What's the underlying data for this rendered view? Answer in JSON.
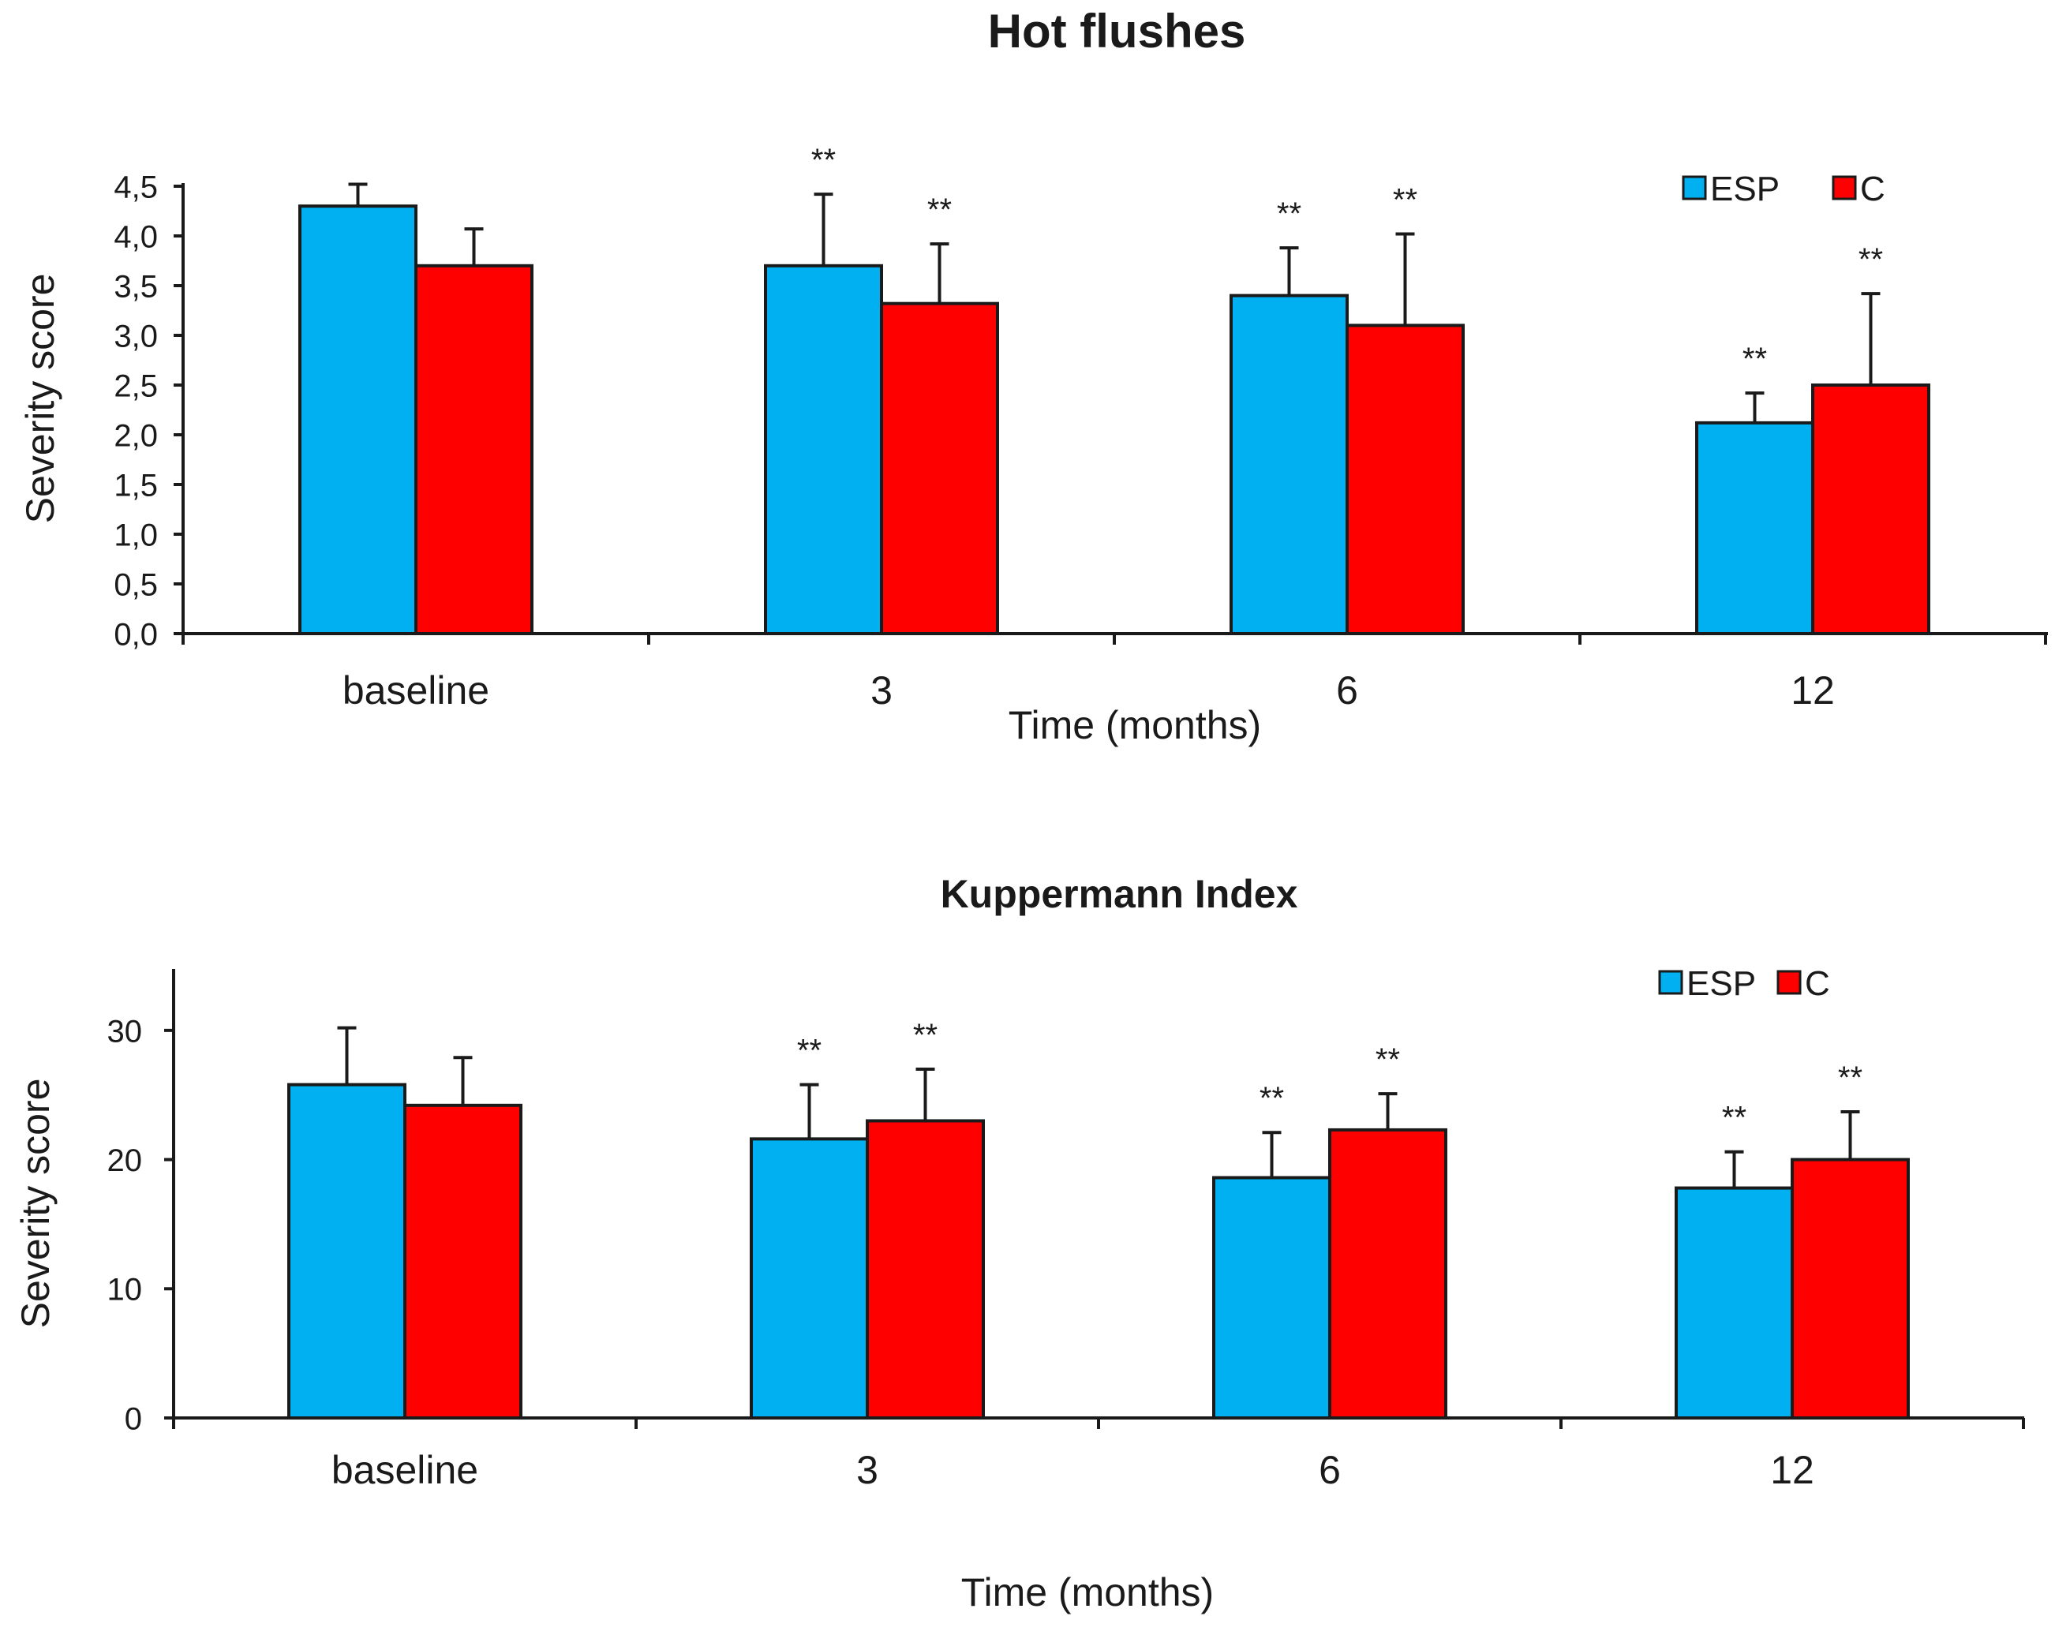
{
  "chart_data": [
    {
      "type": "bar",
      "title": "Hot  flushes",
      "xlabel": "Time (months)",
      "ylabel": "Severity score",
      "categories": [
        "baseline",
        "3",
        "6",
        "12"
      ],
      "ylim": [
        0,
        4.5
      ],
      "yticks": [
        "0,0",
        "0,5",
        "1,0",
        "1,5",
        "2,0",
        "2,5",
        "3,0",
        "3,5",
        "4,0",
        "4,5"
      ],
      "legend_position": "top-right",
      "series": [
        {
          "name": "ESP",
          "color": "#00b0f0",
          "values": [
            4.3,
            3.7,
            3.4,
            2.12
          ],
          "errors": [
            0.22,
            0.72,
            0.48,
            0.3
          ],
          "annotations": [
            "",
            "**",
            "**",
            "**"
          ]
        },
        {
          "name": "C",
          "color": "#ff0000",
          "values": [
            3.7,
            3.32,
            3.1,
            2.5
          ],
          "errors": [
            0.37,
            0.6,
            0.92,
            0.92
          ],
          "annotations": [
            "",
            "**",
            "**",
            "**"
          ]
        }
      ]
    },
    {
      "type": "bar",
      "title": "Kuppermann Index",
      "xlabel": "Time (months)",
      "ylabel": "Severity score",
      "categories": [
        "baseline",
        "3",
        "6",
        "12"
      ],
      "ylim": [
        0,
        35
      ],
      "yticks": [
        "0",
        "10",
        "20",
        "30"
      ],
      "legend_position": "top-right",
      "series": [
        {
          "name": "ESP",
          "color": "#00b0f0",
          "values": [
            25.8,
            21.6,
            18.6,
            17.8
          ],
          "errors": [
            4.4,
            4.2,
            3.5,
            2.8
          ],
          "annotations": [
            "",
            "**",
            "**",
            "**"
          ]
        },
        {
          "name": "C",
          "color": "#ff0000",
          "values": [
            24.2,
            23.0,
            22.3,
            20.0
          ],
          "errors": [
            3.7,
            4.0,
            2.8,
            3.7
          ],
          "annotations": [
            "",
            "**",
            "**",
            "**"
          ]
        }
      ]
    }
  ]
}
